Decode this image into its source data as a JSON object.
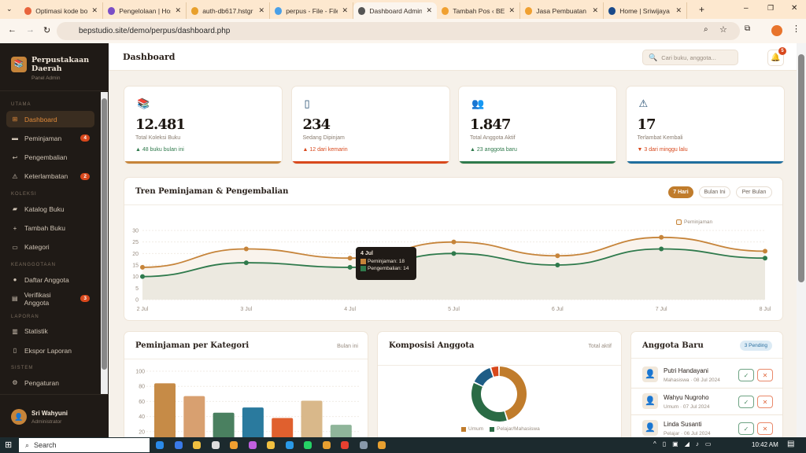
{
  "browser": {
    "tabs": [
      "Optimasi kode bo",
      "Pengelolaan | Hos",
      "auth-db617.hstgr",
      "perpus - File - File",
      "Dashboard Admin",
      "Tambah Pos ‹ BEP",
      "Jasa Pembuatan A",
      "Home | Sriwijaya C"
    ],
    "active_tab": 4,
    "url": "bepstudio.site/demo/perpus/dashboard.php"
  },
  "sidebar": {
    "brand": "Perpustakaan Daerah",
    "subtitle": "Panel Admin",
    "sections": [
      {
        "title": "UTAMA",
        "items": [
          {
            "label": "Dashboard",
            "icon": "grid-icon",
            "active": true
          },
          {
            "label": "Peminjaman",
            "icon": "book-icon",
            "badge": "4"
          },
          {
            "label": "Pengembalian",
            "icon": "return-icon"
          },
          {
            "label": "Keterlambatan",
            "icon": "warning-icon",
            "badge": "2"
          }
        ]
      },
      {
        "title": "KOLEKSI",
        "items": [
          {
            "label": "Katalog Buku",
            "icon": "folder-icon"
          },
          {
            "label": "Tambah Buku",
            "icon": "plus-icon"
          },
          {
            "label": "Kategori",
            "icon": "tag-icon"
          }
        ]
      },
      {
        "title": "KEANGGOTAAN",
        "items": [
          {
            "label": "Daftar Anggota",
            "icon": "user-icon"
          },
          {
            "label": "Verifikasi Anggota",
            "icon": "clipboard-icon",
            "badge": "3"
          }
        ]
      },
      {
        "title": "LAPORAN",
        "items": [
          {
            "label": "Statistik",
            "icon": "chart-icon"
          },
          {
            "label": "Ekspor Laporan",
            "icon": "document-icon"
          }
        ]
      },
      {
        "title": "SISTEM",
        "items": [
          {
            "label": "Pengaturan",
            "icon": "gear-icon"
          }
        ]
      }
    ],
    "user": {
      "name": "Sri Wahyuni",
      "role": "Administrator"
    }
  },
  "header": {
    "title": "Dashboard",
    "search_placeholder": "Cari buku, anggota...",
    "notif_count": "5"
  },
  "stats": [
    {
      "icon": "books-icon",
      "value": "12.481",
      "label": "Total Koleksi Buku",
      "trend": "▲ 48 buku bulan ini",
      "trend_color": "#2f7a4c",
      "accent": "#c6843a"
    },
    {
      "icon": "tablet-icon",
      "value": "234",
      "label": "Sedang Dipinjam",
      "trend": "▲ 12 dari kemarin",
      "trend_color": "#d8481c",
      "accent": "#d8481c"
    },
    {
      "icon": "users-icon",
      "value": "1.847",
      "label": "Total Anggota Aktif",
      "trend": "▲ 23 anggota baru",
      "trend_color": "#2f7a4c",
      "accent": "#2f7a4c"
    },
    {
      "icon": "warning-icon",
      "value": "17",
      "label": "Terlambat Kembali",
      "trend": "▼ 3 dari minggu lalu",
      "trend_color": "#d8481c",
      "accent": "#1f6e9e"
    }
  ],
  "trend": {
    "title": "Tren Peminjaman & Pengembalian",
    "filters": [
      "7 Hari",
      "Bulan Ini",
      "Per Bulan"
    ],
    "active_filter": 0,
    "tooltip": {
      "title": "4 Jul",
      "lines": [
        "Peminjaman: 18",
        "Pengembalian: 14"
      ]
    }
  },
  "chart_data": [
    {
      "type": "line",
      "x": [
        "2 Jul",
        "3 Jul",
        "4 Jul",
        "5 Jul",
        "6 Jul",
        "7 Jul",
        "8 Jul"
      ],
      "ylim": [
        0,
        30
      ],
      "yticks": [
        0,
        5,
        10,
        15,
        20,
        25,
        30
      ],
      "legend": "top-right",
      "series": [
        {
          "name": "Peminjaman",
          "values": [
            14,
            22,
            18,
            25,
            19,
            27,
            21
          ],
          "color": "#c6843a"
        },
        {
          "name": "Pengembalian",
          "values": [
            10,
            16,
            14,
            20,
            15,
            22,
            18
          ],
          "color": "#2f7a4c"
        }
      ]
    },
    {
      "type": "bar",
      "title": "Peminjaman per Kategori",
      "subtitle": "Bulan ini",
      "ylim": [
        0,
        100
      ],
      "yticks": [
        20,
        40,
        60,
        80,
        100
      ],
      "values": [
        84,
        67,
        45,
        52,
        38,
        61,
        29
      ],
      "colors": [
        "#c68b47",
        "#d8a070",
        "#4a8060",
        "#2a7a9e",
        "#e0602e",
        "#d9b88a",
        "#8fb59a"
      ]
    },
    {
      "type": "pie",
      "title": "Komposisi Anggota",
      "subtitle": "Total aktif",
      "slices": [
        {
          "name": "Umum",
          "value": 45,
          "color": "#c07c2c"
        },
        {
          "name": "Pelajar/Mahasiswa",
          "value": 37,
          "color": "#2a6b45"
        },
        {
          "value": 13,
          "color": "#1e5d86"
        },
        {
          "value": 5,
          "color": "#d8481c"
        }
      ]
    }
  ],
  "new_members": {
    "title": "Anggota Baru",
    "badge": "3 Pending",
    "items": [
      {
        "name": "Putri Handayani",
        "meta": "Mahasiswa · 08 Jul 2024"
      },
      {
        "name": "Wahyu Nugroho",
        "meta": "Umum · 07 Jul 2024"
      },
      {
        "name": "Linda Susanti",
        "meta": "Pelajar · 06 Jul 2024"
      }
    ],
    "approve": "✓",
    "reject": "✕"
  },
  "taskbar": {
    "search": "Search",
    "time": "10:42 AM"
  }
}
